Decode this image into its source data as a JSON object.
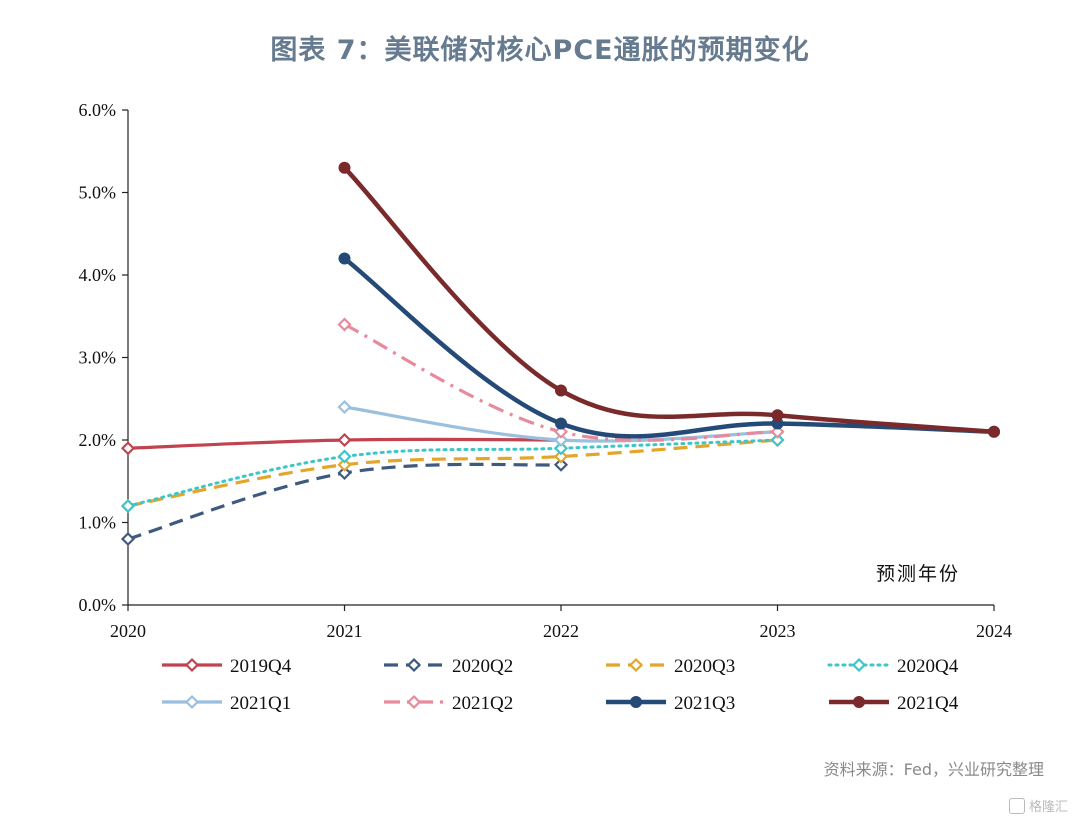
{
  "title": "图表 7：美联储对核心PCE通胀的预期变化",
  "source": "资料来源：Fed，兴业研究整理",
  "watermark": "格隆汇",
  "chart_data": {
    "type": "line",
    "x": [
      2020,
      2021,
      2022,
      2023,
      2024
    ],
    "xlabel": "预测年份",
    "ylabel": "",
    "ylim": [
      0,
      6
    ],
    "y_ticks": [
      "0.0%",
      "1.0%",
      "2.0%",
      "3.0%",
      "4.0%",
      "5.0%",
      "6.0%"
    ],
    "x_ticks": [
      "2020",
      "2021",
      "2022",
      "2023",
      "2024"
    ],
    "y_unit": "%",
    "grid": false,
    "legend_position": "bottom",
    "series": [
      {
        "name": "2019Q4",
        "color": "#c0434f",
        "style": "solid",
        "marker": "diamond-open",
        "x": [
          2020,
          2021,
          2022
        ],
        "y": [
          1.9,
          2.0,
          2.0
        ]
      },
      {
        "name": "2020Q2",
        "color": "#3e5a80",
        "style": "dash",
        "marker": "diamond-open",
        "x": [
          2020,
          2021,
          2022
        ],
        "y": [
          0.8,
          1.6,
          1.7
        ]
      },
      {
        "name": "2020Q3",
        "color": "#e4a52b",
        "style": "dash",
        "marker": "diamond-open",
        "x": [
          2020,
          2021,
          2022,
          2023
        ],
        "y": [
          1.2,
          1.7,
          1.8,
          2.0
        ]
      },
      {
        "name": "2020Q4",
        "color": "#3cc6c8",
        "style": "dot",
        "marker": "diamond-open",
        "x": [
          2020,
          2021,
          2022,
          2023
        ],
        "y": [
          1.2,
          1.8,
          1.9,
          2.0
        ]
      },
      {
        "name": "2021Q1",
        "color": "#9bbfdf",
        "style": "solid",
        "marker": "diamond-open",
        "x": [
          2021,
          2022,
          2023
        ],
        "y": [
          2.4,
          2.0,
          2.1
        ]
      },
      {
        "name": "2021Q2",
        "color": "#e8899c",
        "style": "dashdot",
        "marker": "diamond-open",
        "x": [
          2021,
          2022,
          2023
        ],
        "y": [
          3.4,
          2.1,
          2.1
        ]
      },
      {
        "name": "2021Q3",
        "color": "#244a78",
        "style": "solid",
        "marker": "circle",
        "x": [
          2021,
          2022,
          2023,
          2024
        ],
        "y": [
          4.2,
          2.2,
          2.2,
          2.1
        ]
      },
      {
        "name": "2021Q4",
        "color": "#7a2a2a",
        "style": "solid",
        "marker": "circle",
        "x": [
          2021,
          2022,
          2023,
          2024
        ],
        "y": [
          5.3,
          2.6,
          2.3,
          2.1
        ]
      }
    ]
  }
}
